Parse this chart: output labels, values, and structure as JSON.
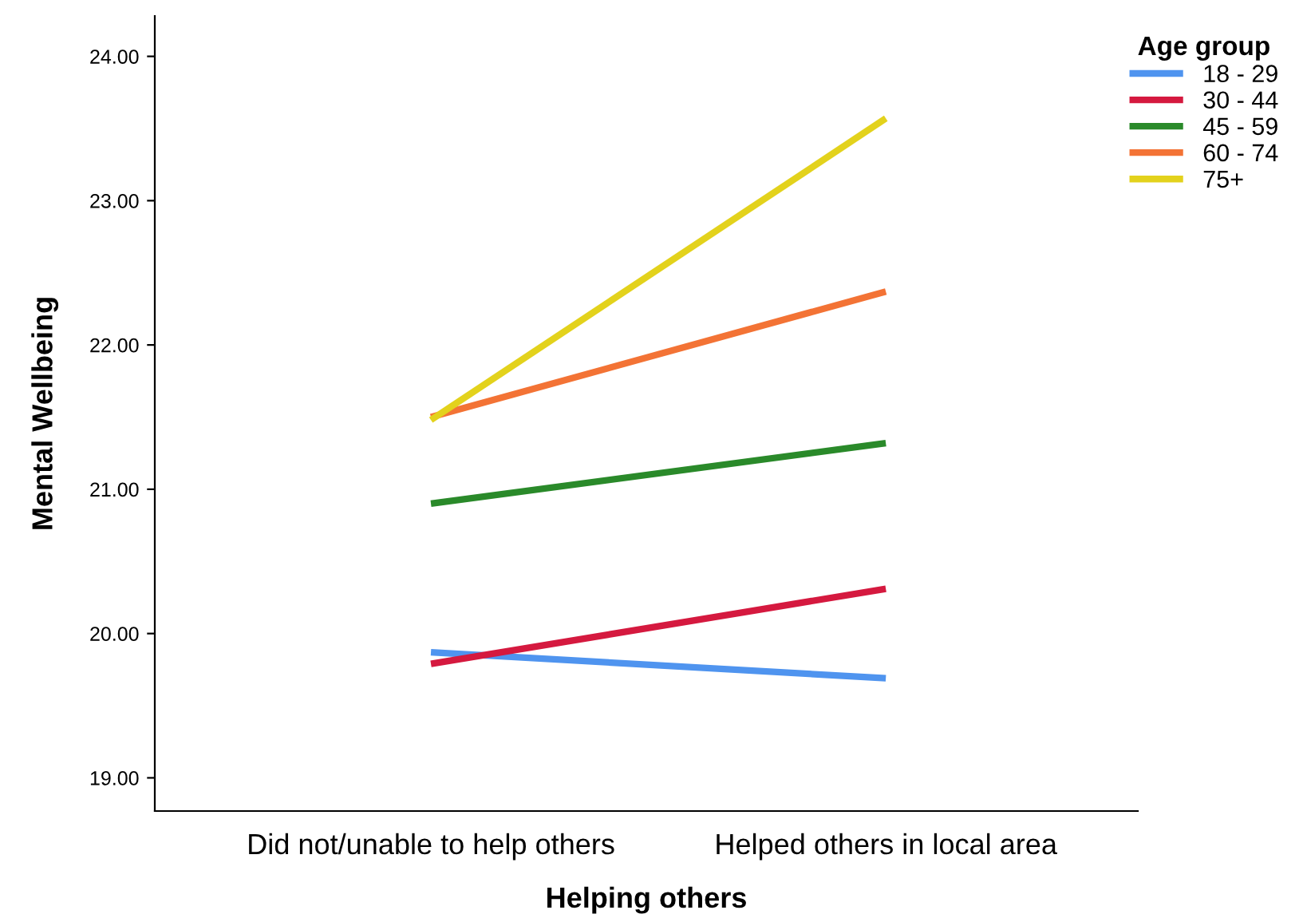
{
  "chart_data": {
    "type": "line",
    "xlabel": "Helping others",
    "ylabel": "Mental Wellbeing",
    "legend_title": "Age group",
    "legend": "top right",
    "grid": false,
    "marker": "none",
    "line_style": "solid",
    "categories": [
      "Did not/unable to help others",
      "Helped others in local area"
    ],
    "ylim": [
      18.77,
      24.28
    ],
    "yticks": [
      {
        "value": 19,
        "label": "19.00"
      },
      {
        "value": 20,
        "label": "20.00"
      },
      {
        "value": 21,
        "label": "21.00"
      },
      {
        "value": 22,
        "label": "22.00"
      },
      {
        "value": 23,
        "label": "23.00"
      },
      {
        "value": 24,
        "label": "24.00"
      }
    ],
    "series": [
      {
        "name": "18 - 29",
        "color": "#4f94ef",
        "values": [
          19.87,
          19.69
        ]
      },
      {
        "name": "30 - 44",
        "color": "#d5193f",
        "values": [
          19.79,
          20.31
        ]
      },
      {
        "name": "45 - 59",
        "color": "#2a8a2a",
        "values": [
          20.9,
          21.32
        ]
      },
      {
        "name": "60 - 74",
        "color": "#f37335",
        "values": [
          21.5,
          22.37
        ]
      },
      {
        "name": "75+",
        "color": "#e3d21c",
        "values": [
          21.48,
          23.57
        ]
      }
    ]
  }
}
